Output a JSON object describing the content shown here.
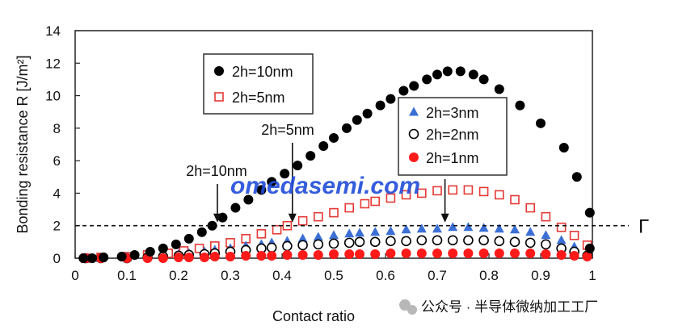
{
  "chart_data": {
    "type": "scatter",
    "xlabel": "Contact ratio",
    "ylabel": "Bonding resistance R [J/m²]",
    "xlim": [
      0,
      1
    ],
    "ylim": [
      0,
      14
    ],
    "x_ticks": [
      "0",
      "0.1",
      "0.2",
      "0.3",
      "0.4",
      "0.5",
      "0.6",
      "0.7",
      "0.8",
      "0.9",
      "1"
    ],
    "y_ticks": [
      "0",
      "2",
      "4",
      "6",
      "8",
      "10",
      "12",
      "14"
    ],
    "gamma_line": {
      "value": 2,
      "label": "Γ"
    },
    "series": [
      {
        "name": "2h=10nm",
        "marker": "filled-circle",
        "color": "#000000",
        "x": [
          0.016,
          0.033,
          0.055,
          0.09,
          0.115,
          0.145,
          0.17,
          0.195,
          0.22,
          0.245,
          0.265,
          0.285,
          0.31,
          0.335,
          0.36,
          0.38,
          0.405,
          0.43,
          0.455,
          0.48,
          0.5,
          0.525,
          0.545,
          0.565,
          0.59,
          0.61,
          0.635,
          0.655,
          0.68,
          0.7,
          0.72,
          0.745,
          0.77,
          0.79,
          0.82,
          0.86,
          0.9,
          0.945,
          0.97,
          0.995
        ],
        "y": [
          0.0,
          0.0,
          0.05,
          0.1,
          0.2,
          0.4,
          0.6,
          0.85,
          1.2,
          1.6,
          2.0,
          2.5,
          3.1,
          3.6,
          4.2,
          4.7,
          5.2,
          5.7,
          6.3,
          6.9,
          7.4,
          8.0,
          8.5,
          8.9,
          9.4,
          9.8,
          10.3,
          10.6,
          11.0,
          11.3,
          11.5,
          11.5,
          11.3,
          11.0,
          10.4,
          9.4,
          8.3,
          6.8,
          5.0,
          2.8
        ],
        "extra_point": {
          "x": 0.995,
          "y": 0.6
        }
      },
      {
        "name": "2h=5nm",
        "marker": "open-square",
        "color": "#e53935",
        "x": [
          0.02,
          0.05,
          0.1,
          0.14,
          0.18,
          0.21,
          0.24,
          0.27,
          0.3,
          0.33,
          0.36,
          0.39,
          0.41,
          0.44,
          0.47,
          0.5,
          0.53,
          0.56,
          0.58,
          0.61,
          0.64,
          0.67,
          0.7,
          0.73,
          0.76,
          0.79,
          0.82,
          0.85,
          0.88,
          0.91,
          0.94,
          0.965,
          0.99
        ],
        "y": [
          0.0,
          0.05,
          0.1,
          0.2,
          0.3,
          0.45,
          0.6,
          0.75,
          0.95,
          1.2,
          1.5,
          1.75,
          2.0,
          2.3,
          2.55,
          2.8,
          3.1,
          3.35,
          3.5,
          3.7,
          3.9,
          4.0,
          4.15,
          4.2,
          4.2,
          4.1,
          3.9,
          3.6,
          3.1,
          2.55,
          1.9,
          1.4,
          0.8
        ]
      },
      {
        "name": "2h=3nm",
        "marker": "filled-triangle",
        "color": "#3b6fd6",
        "x": [
          0.02,
          0.05,
          0.1,
          0.14,
          0.17,
          0.2,
          0.22,
          0.25,
          0.27,
          0.3,
          0.33,
          0.36,
          0.38,
          0.41,
          0.44,
          0.47,
          0.5,
          0.53,
          0.55,
          0.58,
          0.61,
          0.64,
          0.67,
          0.7,
          0.73,
          0.76,
          0.79,
          0.82,
          0.85,
          0.88,
          0.91,
          0.94,
          0.965,
          0.99
        ],
        "y": [
          0.0,
          0.0,
          0.05,
          0.1,
          0.15,
          0.25,
          0.3,
          0.4,
          0.5,
          0.6,
          0.75,
          0.85,
          0.95,
          1.05,
          1.2,
          1.3,
          1.4,
          1.5,
          1.55,
          1.6,
          1.65,
          1.75,
          1.8,
          1.8,
          1.9,
          1.9,
          1.85,
          1.8,
          1.75,
          1.6,
          1.4,
          1.1,
          0.7,
          0.3
        ]
      },
      {
        "name": "2h=2nm",
        "marker": "open-circle",
        "color": "#000000",
        "x": [
          0.02,
          0.05,
          0.1,
          0.14,
          0.17,
          0.2,
          0.22,
          0.25,
          0.27,
          0.3,
          0.33,
          0.36,
          0.38,
          0.41,
          0.44,
          0.47,
          0.5,
          0.53,
          0.55,
          0.58,
          0.61,
          0.64,
          0.67,
          0.7,
          0.73,
          0.76,
          0.79,
          0.82,
          0.85,
          0.88,
          0.91,
          0.94,
          0.965,
          0.99
        ],
        "y": [
          0.0,
          0.0,
          0.0,
          0.05,
          0.1,
          0.15,
          0.2,
          0.25,
          0.3,
          0.4,
          0.5,
          0.6,
          0.65,
          0.75,
          0.8,
          0.85,
          0.9,
          0.95,
          1.0,
          1.0,
          1.05,
          1.05,
          1.1,
          1.1,
          1.1,
          1.1,
          1.1,
          1.05,
          1.0,
          0.95,
          0.85,
          0.6,
          0.4,
          0.15
        ]
      },
      {
        "name": "2h=1nm",
        "marker": "filled-circle",
        "color": "#ff1a1a",
        "x": [
          0.02,
          0.05,
          0.1,
          0.14,
          0.17,
          0.2,
          0.22,
          0.25,
          0.27,
          0.3,
          0.33,
          0.36,
          0.38,
          0.41,
          0.44,
          0.47,
          0.5,
          0.53,
          0.55,
          0.58,
          0.61,
          0.64,
          0.67,
          0.7,
          0.73,
          0.76,
          0.79,
          0.82,
          0.85,
          0.88,
          0.91,
          0.94,
          0.965,
          0.99
        ],
        "y": [
          0.0,
          0.0,
          0.0,
          0.0,
          0.0,
          0.05,
          0.05,
          0.05,
          0.1,
          0.1,
          0.15,
          0.15,
          0.15,
          0.2,
          0.2,
          0.2,
          0.25,
          0.25,
          0.25,
          0.25,
          0.3,
          0.3,
          0.3,
          0.3,
          0.3,
          0.3,
          0.3,
          0.3,
          0.3,
          0.3,
          0.25,
          0.2,
          0.15,
          0.1
        ]
      }
    ],
    "legend_left": [
      "2h=10nm",
      "2h=5nm"
    ],
    "legend_right": [
      "2h=3nm",
      "2h=2nm",
      "2h=1nm"
    ],
    "annotations": [
      {
        "text": "2h=10nm",
        "arrow_to": {
          "x": 0.275,
          "y": 2.0
        }
      },
      {
        "text": "2h=5nm",
        "arrow_to": {
          "x": 0.42,
          "y": 2.0
        }
      },
      {
        "arrow_to": {
          "x": 0.715,
          "y": 2.0
        }
      }
    ]
  },
  "watermark": "omedasemi.com",
  "footer_text": "公众号 · 半导体微纳加工工厂",
  "colors": {
    "watermark": "#1f4bd8"
  }
}
